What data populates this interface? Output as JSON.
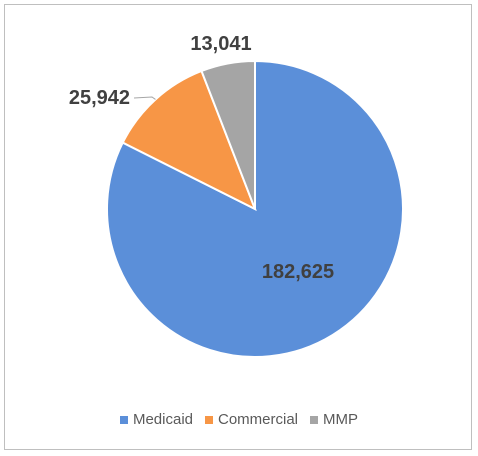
{
  "chart_data": {
    "type": "pie",
    "title": "",
    "categories": [
      "Medicaid",
      "Commercial",
      "MMP"
    ],
    "values": [
      182625,
      25942,
      13041
    ],
    "value_labels": [
      "182,625",
      "25,942",
      "13,041"
    ],
    "colors": [
      "#5B8FD9",
      "#F79646",
      "#A5A5A5"
    ],
    "legend_position": "bottom",
    "start_angle_deg": 0,
    "direction": "clockwise"
  }
}
